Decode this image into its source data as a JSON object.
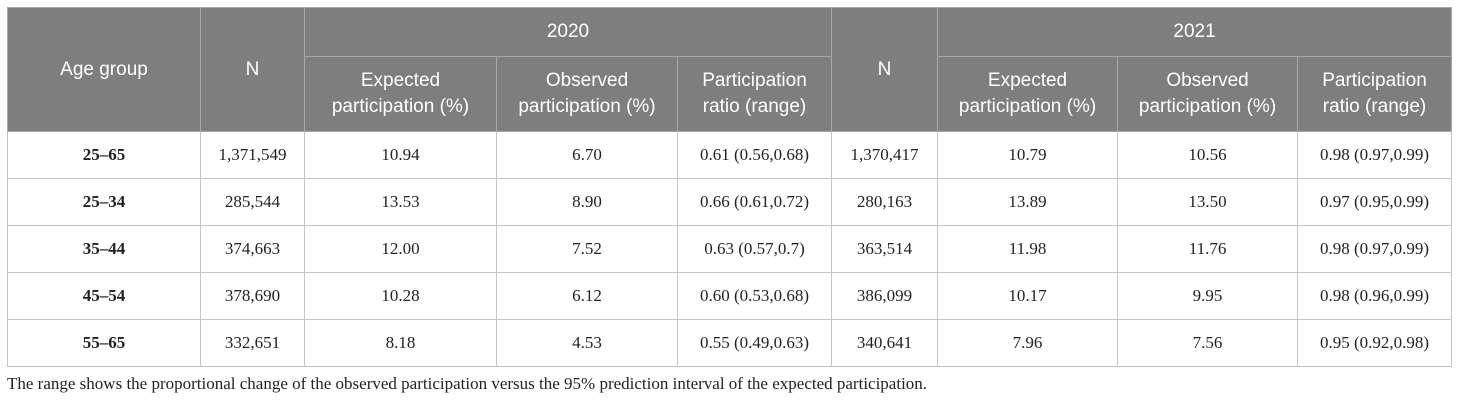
{
  "table": {
    "header": {
      "age_group": "Age group",
      "year_2020": "2020",
      "year_2021": "2021",
      "n": "N",
      "expected": "Expected participation (%)",
      "observed": "Observed participation (%)",
      "ratio": "Participation ratio (range)"
    },
    "rows": [
      {
        "age": "25–65",
        "n2020": "1,371,549",
        "exp2020": "10.94",
        "obs2020": "6.70",
        "ratio2020": "0.61 (0.56,0.68)",
        "n2021": "1,370,417",
        "exp2021": "10.79",
        "obs2021": "10.56",
        "ratio2021": "0.98 (0.97,0.99)"
      },
      {
        "age": "25–34",
        "n2020": "285,544",
        "exp2020": "13.53",
        "obs2020": "8.90",
        "ratio2020": "0.66 (0.61,0.72)",
        "n2021": "280,163",
        "exp2021": "13.89",
        "obs2021": "13.50",
        "ratio2021": "0.97 (0.95,0.99)"
      },
      {
        "age": "35–44",
        "n2020": "374,663",
        "exp2020": "12.00",
        "obs2020": "7.52",
        "ratio2020": "0.63 (0.57,0.7)",
        "n2021": "363,514",
        "exp2021": "11.98",
        "obs2021": "11.76",
        "ratio2021": "0.98 (0.97,0.99)"
      },
      {
        "age": "45–54",
        "n2020": "378,690",
        "exp2020": "10.28",
        "obs2020": "6.12",
        "ratio2020": "0.60 (0.53,0.68)",
        "n2021": "386,099",
        "exp2021": "10.17",
        "obs2021": "9.95",
        "ratio2021": "0.98 (0.96,0.99)"
      },
      {
        "age": "55–65",
        "n2020": "332,651",
        "exp2020": "8.18",
        "obs2020": "4.53",
        "ratio2020": "0.55 (0.49,0.63)",
        "n2021": "340,641",
        "exp2021": "7.96",
        "obs2021": "7.56",
        "ratio2021": "0.95 (0.92,0.98)"
      }
    ]
  },
  "footnote": "The range shows the proportional change of the observed participation versus the 95% prediction interval of the expected participation."
}
